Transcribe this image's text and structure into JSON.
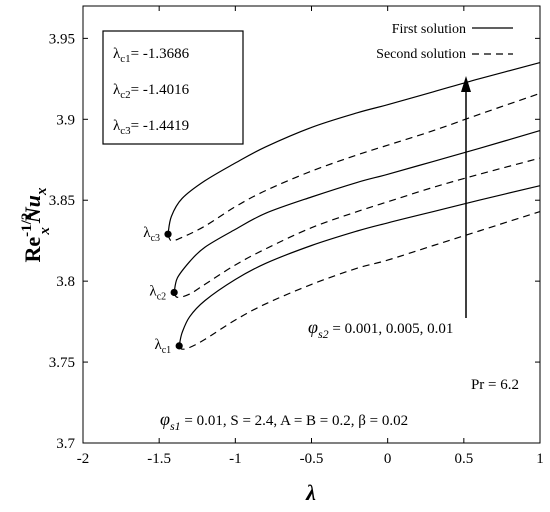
{
  "chart_data": {
    "type": "line",
    "xlabel": "λ",
    "ylabel": {
      "base": "Re",
      "base_sub": "x",
      "base_sup": "-1/2",
      "main": "Nu",
      "main_sub": "x"
    },
    "xlim": [
      -2,
      1
    ],
    "ylim": [
      3.7,
      3.97
    ],
    "xticks": [
      "-2",
      "-1.5",
      "-1",
      "-0.5",
      "0",
      "0.5",
      "1"
    ],
    "xtick_values": [
      -2,
      -1.5,
      -1,
      -0.5,
      0,
      0.5,
      1
    ],
    "yticks": [
      "3.7",
      "3.75",
      "3.8",
      "3.85",
      "3.9",
      "3.95"
    ],
    "ytick_values": [
      3.7,
      3.75,
      3.8,
      3.85,
      3.9,
      3.95
    ],
    "grid": false,
    "legend_position": "top-right",
    "legend": [
      {
        "label": "First solution",
        "style": "solid"
      },
      {
        "label": "Second solution",
        "style": "dashed"
      }
    ],
    "critical_box": [
      {
        "sym": "λ",
        "sub": "c1",
        "value": "= -1.3686"
      },
      {
        "sym": "λ",
        "sub": "c2",
        "value": "= -1.4016"
      },
      {
        "sym": "λ",
        "sub": "c3",
        "value": "= -1.4419"
      }
    ],
    "annotations": {
      "phi_s2": {
        "phi": "φ",
        "sub": "s2",
        "text": " = 0.001, 0.005, 0.01"
      },
      "pr": "Pr = 6.2",
      "params": {
        "phi": "φ",
        "sub": "s1",
        "rest": " = 0.01, S = 2.4, A = B = 0.2, β = 0.02"
      }
    },
    "critical_points": [
      {
        "sym": "λ",
        "sub": "c1",
        "x": -1.3686,
        "y": 3.76
      },
      {
        "sym": "λ",
        "sub": "c2",
        "x": -1.4016,
        "y": 3.793
      },
      {
        "sym": "λ",
        "sub": "c3",
        "x": -1.4419,
        "y": 3.829
      }
    ],
    "series": [
      {
        "group": "c1",
        "style": "solid",
        "x": [
          -1.3686,
          -1.35,
          -1.3,
          -1.2,
          -1.0,
          -0.8,
          -0.5,
          -0.2,
          0,
          0.3,
          0.6,
          1.0
        ],
        "y": [
          3.76,
          3.768,
          3.778,
          3.788,
          3.801,
          3.811,
          3.822,
          3.831,
          3.836,
          3.843,
          3.85,
          3.859
        ]
      },
      {
        "group": "c1",
        "style": "dashed",
        "x": [
          -1.3686,
          -1.35,
          -1.3,
          -1.2,
          -1.0,
          -0.8,
          -0.5,
          -0.2,
          0,
          0.3,
          0.6,
          1.0
        ],
        "y": [
          3.76,
          3.758,
          3.759,
          3.764,
          3.776,
          3.786,
          3.798,
          3.808,
          3.813,
          3.822,
          3.831,
          3.843
        ]
      },
      {
        "group": "c2",
        "style": "solid",
        "x": [
          -1.4016,
          -1.38,
          -1.3,
          -1.2,
          -1.0,
          -0.8,
          -0.5,
          -0.2,
          0,
          0.3,
          0.6,
          1.0
        ],
        "y": [
          3.793,
          3.802,
          3.812,
          3.821,
          3.832,
          3.842,
          3.852,
          3.861,
          3.866,
          3.874,
          3.882,
          3.893
        ]
      },
      {
        "group": "c2",
        "style": "dashed",
        "x": [
          -1.4016,
          -1.38,
          -1.3,
          -1.2,
          -1.0,
          -0.8,
          -0.5,
          -0.2,
          0,
          0.3,
          0.6,
          1.0
        ],
        "y": [
          3.793,
          3.79,
          3.792,
          3.798,
          3.81,
          3.82,
          3.833,
          3.843,
          3.849,
          3.858,
          3.866,
          3.876
        ]
      },
      {
        "group": "c3",
        "style": "solid",
        "x": [
          -1.4419,
          -1.42,
          -1.35,
          -1.2,
          -1.0,
          -0.8,
          -0.5,
          -0.2,
          0,
          0.3,
          0.6,
          1.0
        ],
        "y": [
          3.829,
          3.84,
          3.851,
          3.862,
          3.873,
          3.883,
          3.895,
          3.904,
          3.909,
          3.917,
          3.925,
          3.935
        ]
      },
      {
        "group": "c3",
        "style": "dashed",
        "x": [
          -1.4419,
          -1.42,
          -1.35,
          -1.2,
          -1.0,
          -0.8,
          -0.5,
          -0.2,
          0,
          0.3,
          0.6,
          1.0
        ],
        "y": [
          3.829,
          3.825,
          3.827,
          3.834,
          3.846,
          3.856,
          3.868,
          3.878,
          3.884,
          3.893,
          3.903,
          3.916
        ]
      }
    ]
  }
}
